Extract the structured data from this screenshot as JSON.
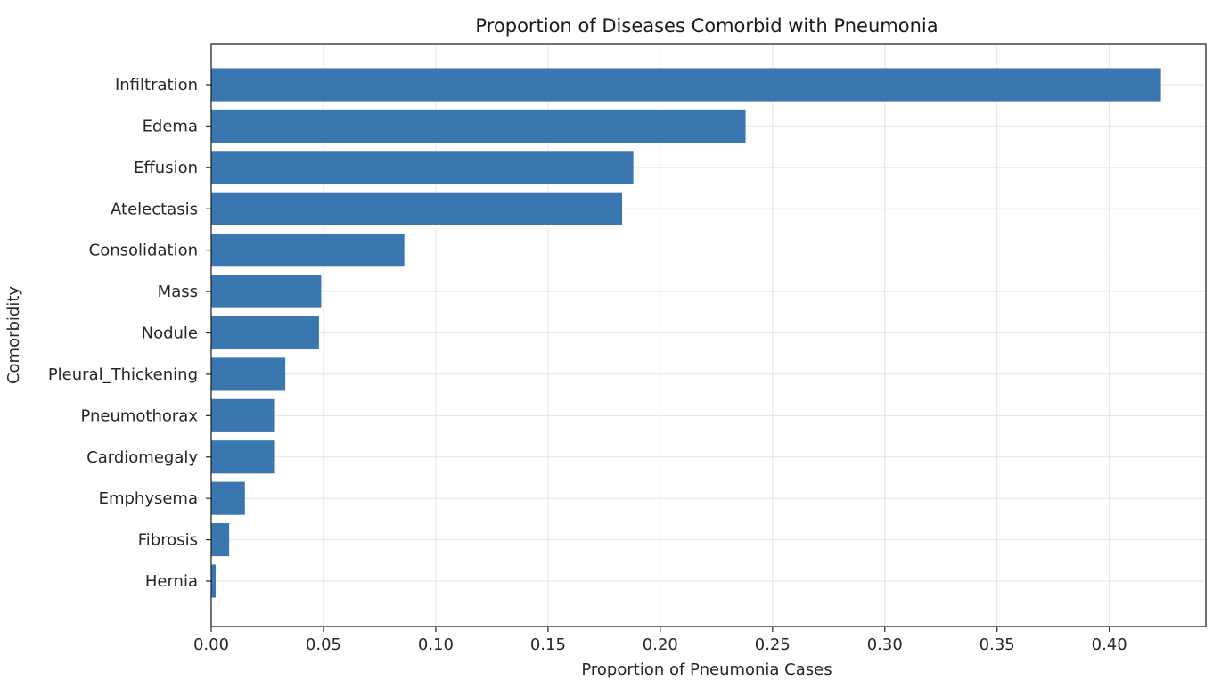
{
  "chart_data": {
    "type": "bar",
    "orientation": "horizontal",
    "title": "Proportion of Diseases Comorbid with Pneumonia",
    "xlabel": "Proportion of Pneumonia Cases",
    "ylabel": "Comorbidity",
    "xlim": [
      0,
      0.443
    ],
    "xticks": [
      "0.00",
      "0.05",
      "0.10",
      "0.15",
      "0.20",
      "0.25",
      "0.30",
      "0.35",
      "0.40"
    ],
    "grid": true,
    "bar_color": "#3a76af",
    "categories": [
      "Infiltration",
      "Edema",
      "Effusion",
      "Atelectasis",
      "Consolidation",
      "Mass",
      "Nodule",
      "Pleural_Thickening",
      "Pneumothorax",
      "Cardiomegaly",
      "Emphysema",
      "Fibrosis",
      "Hernia"
    ],
    "values": [
      0.423,
      0.238,
      0.188,
      0.183,
      0.086,
      0.049,
      0.048,
      0.033,
      0.028,
      0.028,
      0.015,
      0.008,
      0.002
    ]
  }
}
